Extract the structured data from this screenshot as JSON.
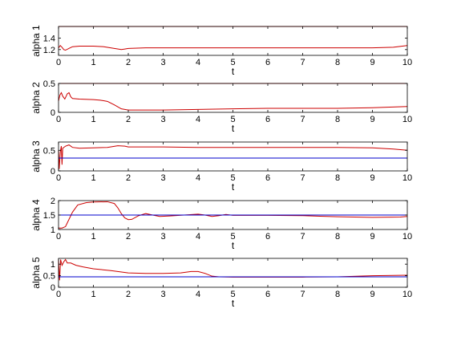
{
  "chart_data": [
    {
      "type": "line",
      "ylabel": "alpha 1",
      "xlabel": "t",
      "xlim": [
        0,
        10
      ],
      "ylim": [
        1.1,
        1.6
      ],
      "xticks": [
        "0",
        "1",
        "2",
        "3",
        "4",
        "5",
        "6",
        "7",
        "8",
        "9",
        "10"
      ],
      "yticks": [
        1.2,
        1.4
      ],
      "ytick_labels": [
        "1.2",
        "1.4"
      ],
      "series": [
        {
          "color": "#cc0000",
          "points": [
            [
              0,
              1.23
            ],
            [
              0.05,
              1.27
            ],
            [
              0.1,
              1.24
            ],
            [
              0.15,
              1.2
            ],
            [
              0.2,
              1.19
            ],
            [
              0.3,
              1.22
            ],
            [
              0.4,
              1.25
            ],
            [
              0.6,
              1.26
            ],
            [
              1.0,
              1.26
            ],
            [
              1.3,
              1.25
            ],
            [
              1.6,
              1.22
            ],
            [
              1.8,
              1.2
            ],
            [
              1.9,
              1.21
            ],
            [
              2.0,
              1.22
            ],
            [
              2.5,
              1.23
            ],
            [
              3,
              1.23
            ],
            [
              4,
              1.23
            ],
            [
              5,
              1.23
            ],
            [
              6,
              1.23
            ],
            [
              7,
              1.23
            ],
            [
              8,
              1.23
            ],
            [
              9,
              1.23
            ],
            [
              9.6,
              1.24
            ],
            [
              10,
              1.27
            ]
          ]
        },
        {
          "color": "#0000cc",
          "points": [
            [
              0,
              1.6
            ],
            [
              10,
              1.6
            ]
          ]
        },
        {
          "color": "#cc0000",
          "points": [
            [
              0,
              1.6
            ],
            [
              10,
              1.6
            ]
          ]
        }
      ]
    },
    {
      "type": "line",
      "ylabel": "alpha 2",
      "xlabel": "t",
      "xlim": [
        0,
        10
      ],
      "ylim": [
        0,
        0.5
      ],
      "xticks": [
        "0",
        "1",
        "2",
        "3",
        "4",
        "5",
        "6",
        "7",
        "8",
        "9",
        "10"
      ],
      "yticks": [
        0,
        0.5
      ],
      "ytick_labels": [
        "0",
        "0.5"
      ],
      "series": [
        {
          "color": "#cc0000",
          "points": [
            [
              0,
              0.2
            ],
            [
              0.04,
              0.3
            ],
            [
              0.08,
              0.34
            ],
            [
              0.12,
              0.28
            ],
            [
              0.18,
              0.23
            ],
            [
              0.25,
              0.32
            ],
            [
              0.3,
              0.34
            ],
            [
              0.35,
              0.27
            ],
            [
              0.4,
              0.24
            ],
            [
              0.6,
              0.23
            ],
            [
              1.0,
              0.22
            ],
            [
              1.2,
              0.21
            ],
            [
              1.4,
              0.19
            ],
            [
              1.6,
              0.13
            ],
            [
              1.8,
              0.06
            ],
            [
              2.0,
              0.04
            ],
            [
              2.5,
              0.04
            ],
            [
              3,
              0.04
            ],
            [
              4,
              0.05
            ],
            [
              5,
              0.06
            ],
            [
              6,
              0.07
            ],
            [
              7,
              0.07
            ],
            [
              8,
              0.07
            ],
            [
              9,
              0.08
            ],
            [
              9.5,
              0.09
            ],
            [
              10,
              0.1
            ]
          ]
        },
        {
          "color": "#0000cc",
          "points": [
            [
              0,
              0.5
            ],
            [
              10,
              0.5
            ]
          ]
        },
        {
          "color": "#cc0000",
          "points": [
            [
              0,
              0.5
            ],
            [
              10,
              0.5
            ]
          ]
        }
      ]
    },
    {
      "type": "line",
      "ylabel": "alpha 3",
      "xlabel": "t",
      "xlim": [
        0,
        10
      ],
      "ylim": [
        0,
        0.7
      ],
      "xticks": [
        "0",
        "1",
        "2",
        "3",
        "4",
        "5",
        "6",
        "7",
        "8",
        "9",
        "10"
      ],
      "yticks": [
        0,
        0.5
      ],
      "ytick_labels": [
        "0",
        "0.5"
      ],
      "series": [
        {
          "color": "#cc0000",
          "points": [
            [
              0,
              0.5
            ],
            [
              0.02,
              0.05
            ],
            [
              0.05,
              0.45
            ],
            [
              0.08,
              0.6
            ],
            [
              0.1,
              0.15
            ],
            [
              0.12,
              0.55
            ],
            [
              0.2,
              0.6
            ],
            [
              0.3,
              0.63
            ],
            [
              0.4,
              0.57
            ],
            [
              0.6,
              0.55
            ],
            [
              1.0,
              0.56
            ],
            [
              1.4,
              0.57
            ],
            [
              1.7,
              0.61
            ],
            [
              1.9,
              0.6
            ],
            [
              2.0,
              0.58
            ],
            [
              3,
              0.58
            ],
            [
              4,
              0.57
            ],
            [
              5,
              0.57
            ],
            [
              6,
              0.57
            ],
            [
              7,
              0.57
            ],
            [
              8,
              0.57
            ],
            [
              9,
              0.56
            ],
            [
              9.6,
              0.53
            ],
            [
              10,
              0.5
            ]
          ]
        },
        {
          "color": "#0000cc",
          "points": [
            [
              0,
              0.31
            ],
            [
              10,
              0.31
            ]
          ]
        }
      ]
    },
    {
      "type": "line",
      "ylabel": "alpha 4",
      "xlabel": "t",
      "xlim": [
        0,
        10
      ],
      "ylim": [
        1,
        2
      ],
      "xticks": [
        "0",
        "1",
        "2",
        "3",
        "4",
        "5",
        "6",
        "7",
        "8",
        "9",
        "10"
      ],
      "yticks": [
        1,
        1.5,
        2
      ],
      "ytick_labels": [
        "1",
        "1.5",
        "2"
      ],
      "series": [
        {
          "color": "#cc0000",
          "points": [
            [
              0,
              1.05
            ],
            [
              0.1,
              1.05
            ],
            [
              0.2,
              1.1
            ],
            [
              0.3,
              1.35
            ],
            [
              0.4,
              1.6
            ],
            [
              0.55,
              1.85
            ],
            [
              0.8,
              1.93
            ],
            [
              1.0,
              1.95
            ],
            [
              1.4,
              1.96
            ],
            [
              1.6,
              1.9
            ],
            [
              1.7,
              1.75
            ],
            [
              1.8,
              1.55
            ],
            [
              1.9,
              1.4
            ],
            [
              2.0,
              1.34
            ],
            [
              2.1,
              1.35
            ],
            [
              2.3,
              1.48
            ],
            [
              2.5,
              1.55
            ],
            [
              2.7,
              1.5
            ],
            [
              2.9,
              1.45
            ],
            [
              3.2,
              1.47
            ],
            [
              3.6,
              1.5
            ],
            [
              4.0,
              1.53
            ],
            [
              4.2,
              1.5
            ],
            [
              4.4,
              1.45
            ],
            [
              4.6,
              1.48
            ],
            [
              4.8,
              1.52
            ],
            [
              5.0,
              1.49
            ],
            [
              5.5,
              1.49
            ],
            [
              6,
              1.49
            ],
            [
              7,
              1.48
            ],
            [
              7.5,
              1.46
            ],
            [
              8,
              1.44
            ],
            [
              9,
              1.42
            ],
            [
              9.8,
              1.43
            ],
            [
              10,
              1.45
            ]
          ]
        },
        {
          "color": "#0000cc",
          "points": [
            [
              0,
              1.5
            ],
            [
              10,
              1.5
            ]
          ]
        }
      ]
    },
    {
      "type": "line",
      "ylabel": "alpha 5",
      "xlabel": "t",
      "xlim": [
        0,
        10
      ],
      "ylim": [
        0,
        1.25
      ],
      "xticks": [
        "0",
        "1",
        "2",
        "3",
        "4",
        "5",
        "6",
        "7",
        "8",
        "9",
        "10"
      ],
      "yticks": [
        0,
        0.5,
        1
      ],
      "ytick_labels": [
        "0",
        "0.5",
        "1"
      ],
      "series": [
        {
          "color": "#cc0000",
          "points": [
            [
              0,
              1.2
            ],
            [
              0.03,
              0.3
            ],
            [
              0.06,
              1.2
            ],
            [
              0.1,
              0.95
            ],
            [
              0.15,
              1.1
            ],
            [
              0.2,
              1.2
            ],
            [
              0.25,
              1.05
            ],
            [
              0.35,
              1.05
            ],
            [
              0.5,
              0.95
            ],
            [
              0.7,
              0.88
            ],
            [
              1.0,
              0.8
            ],
            [
              1.5,
              0.72
            ],
            [
              2.0,
              0.62
            ],
            [
              2.5,
              0.6
            ],
            [
              3,
              0.6
            ],
            [
              3.5,
              0.62
            ],
            [
              3.8,
              0.68
            ],
            [
              4.0,
              0.68
            ],
            [
              4.2,
              0.6
            ],
            [
              4.4,
              0.48
            ],
            [
              4.6,
              0.45
            ],
            [
              5,
              0.44
            ],
            [
              6,
              0.44
            ],
            [
              7,
              0.44
            ],
            [
              8,
              0.45
            ],
            [
              9,
              0.5
            ],
            [
              10,
              0.52
            ]
          ]
        },
        {
          "color": "#0000cc",
          "points": [
            [
              0,
              0.45
            ],
            [
              10,
              0.45
            ]
          ]
        }
      ]
    }
  ]
}
